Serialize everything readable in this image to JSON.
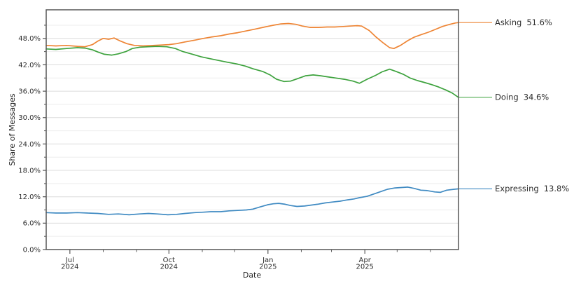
{
  "chart_data": {
    "type": "line",
    "title": "",
    "xlabel": "Date",
    "ylabel": "Share of Messages",
    "ylim": [
      0,
      54.5
    ],
    "grid": "horizontal",
    "legend_position": "right-end-annotations",
    "x_start_date": "2024-06-09",
    "x_end_date": "2025-06-27",
    "y_major_ticks": [
      {
        "v": 0,
        "label": "0.0%"
      },
      {
        "v": 6,
        "label": "6.0%"
      },
      {
        "v": 12,
        "label": "12.0%"
      },
      {
        "v": 18,
        "label": "18.0%"
      },
      {
        "v": 24,
        "label": "24.0%"
      },
      {
        "v": 30,
        "label": "30.0%"
      },
      {
        "v": 36,
        "label": "36.0%"
      },
      {
        "v": 42,
        "label": "42.0%"
      },
      {
        "v": 48,
        "label": "48.0%"
      }
    ],
    "y_minor_ticks": [
      3,
      9,
      15,
      21,
      27,
      33,
      39,
      45,
      51
    ],
    "x_major_ticks": [
      {
        "date": "2024-07-01",
        "line1": "Jul",
        "line2": "2024"
      },
      {
        "date": "2024-10-01",
        "line1": "Oct",
        "line2": "2024"
      },
      {
        "date": "2025-01-01",
        "line1": "Jan",
        "line2": "2025"
      },
      {
        "date": "2025-04-01",
        "line1": "Apr",
        "line2": "2025"
      }
    ],
    "x_minor_ticks": [
      "2024-08-01",
      "2024-09-01",
      "2024-11-01",
      "2024-12-01",
      "2025-02-01",
      "2025-03-01",
      "2025-05-01",
      "2025-06-01"
    ],
    "frame_color": "#565656",
    "grid_major_color": "#dcdcdc",
    "grid_minor_color": "#ededed",
    "series": [
      {
        "name": "Asking",
        "color": "#ee8535",
        "end_label_name": "Asking",
        "end_label_value": "51.6%",
        "points": [
          [
            "2024-06-09",
            46.4
          ],
          [
            "2024-06-18",
            46.3
          ],
          [
            "2024-06-28",
            46.4
          ],
          [
            "2024-07-08",
            46.2
          ],
          [
            "2024-07-15",
            46.1
          ],
          [
            "2024-07-22",
            46.6
          ],
          [
            "2024-07-27",
            47.4
          ],
          [
            "2024-08-01",
            48.0
          ],
          [
            "2024-08-06",
            47.8
          ],
          [
            "2024-08-11",
            48.1
          ],
          [
            "2024-08-17",
            47.4
          ],
          [
            "2024-08-23",
            46.8
          ],
          [
            "2024-08-30",
            46.4
          ],
          [
            "2024-09-07",
            46.3
          ],
          [
            "2024-09-16",
            46.4
          ],
          [
            "2024-09-24",
            46.5
          ],
          [
            "2024-10-01",
            46.6
          ],
          [
            "2024-10-08",
            46.8
          ],
          [
            "2024-10-16",
            47.2
          ],
          [
            "2024-10-25",
            47.6
          ],
          [
            "2024-11-02",
            48.0
          ],
          [
            "2024-11-09",
            48.3
          ],
          [
            "2024-11-18",
            48.6
          ],
          [
            "2024-11-26",
            49.0
          ],
          [
            "2024-12-04",
            49.3
          ],
          [
            "2024-12-12",
            49.7
          ],
          [
            "2024-12-20",
            50.1
          ],
          [
            "2024-12-29",
            50.6
          ],
          [
            "2025-01-06",
            51.0
          ],
          [
            "2025-01-13",
            51.3
          ],
          [
            "2025-01-20",
            51.4
          ],
          [
            "2025-01-27",
            51.2
          ],
          [
            "2025-02-02",
            50.8
          ],
          [
            "2025-02-09",
            50.5
          ],
          [
            "2025-02-17",
            50.5
          ],
          [
            "2025-02-25",
            50.6
          ],
          [
            "2025-03-04",
            50.6
          ],
          [
            "2025-03-12",
            50.7
          ],
          [
            "2025-03-18",
            50.8
          ],
          [
            "2025-03-25",
            50.9
          ],
          [
            "2025-03-29",
            50.8
          ],
          [
            "2025-04-05",
            49.8
          ],
          [
            "2025-04-11",
            48.4
          ],
          [
            "2025-04-18",
            47.0
          ],
          [
            "2025-04-24",
            45.9
          ],
          [
            "2025-04-28",
            45.7
          ],
          [
            "2025-05-04",
            46.4
          ],
          [
            "2025-05-11",
            47.5
          ],
          [
            "2025-05-17",
            48.3
          ],
          [
            "2025-05-24",
            48.9
          ],
          [
            "2025-05-30",
            49.4
          ],
          [
            "2025-06-06",
            50.1
          ],
          [
            "2025-06-12",
            50.7
          ],
          [
            "2025-06-19",
            51.2
          ],
          [
            "2025-06-24",
            51.5
          ],
          [
            "2025-06-27",
            51.6
          ]
        ]
      },
      {
        "name": "Doing",
        "color": "#3da23d",
        "end_label_name": "Doing",
        "end_label_value": "34.6%",
        "points": [
          [
            "2024-06-09",
            45.6
          ],
          [
            "2024-06-18",
            45.5
          ],
          [
            "2024-06-28",
            45.7
          ],
          [
            "2024-07-08",
            45.9
          ],
          [
            "2024-07-15",
            45.8
          ],
          [
            "2024-07-22",
            45.4
          ],
          [
            "2024-07-27",
            44.9
          ],
          [
            "2024-08-02",
            44.4
          ],
          [
            "2024-08-09",
            44.2
          ],
          [
            "2024-08-15",
            44.5
          ],
          [
            "2024-08-22",
            45.0
          ],
          [
            "2024-08-28",
            45.7
          ],
          [
            "2024-09-04",
            46.0
          ],
          [
            "2024-09-12",
            46.1
          ],
          [
            "2024-09-20",
            46.2
          ],
          [
            "2024-09-29",
            46.1
          ],
          [
            "2024-10-07",
            45.7
          ],
          [
            "2024-10-14",
            45.0
          ],
          [
            "2024-10-23",
            44.4
          ],
          [
            "2024-10-31",
            43.8
          ],
          [
            "2024-11-08",
            43.4
          ],
          [
            "2024-11-16",
            43.0
          ],
          [
            "2024-11-24",
            42.6
          ],
          [
            "2024-12-03",
            42.2
          ],
          [
            "2024-12-11",
            41.7
          ],
          [
            "2024-12-18",
            41.1
          ],
          [
            "2024-12-27",
            40.5
          ],
          [
            "2025-01-03",
            39.7
          ],
          [
            "2025-01-09",
            38.7
          ],
          [
            "2025-01-16",
            38.2
          ],
          [
            "2025-01-22",
            38.3
          ],
          [
            "2025-01-29",
            38.9
          ],
          [
            "2025-02-05",
            39.5
          ],
          [
            "2025-02-12",
            39.7
          ],
          [
            "2025-02-19",
            39.5
          ],
          [
            "2025-02-27",
            39.2
          ],
          [
            "2025-03-05",
            39.0
          ],
          [
            "2025-03-13",
            38.7
          ],
          [
            "2025-03-21",
            38.3
          ],
          [
            "2025-03-27",
            37.8
          ],
          [
            "2025-04-03",
            38.7
          ],
          [
            "2025-04-11",
            39.6
          ],
          [
            "2025-04-17",
            40.4
          ],
          [
            "2025-04-24",
            41.0
          ],
          [
            "2025-04-30",
            40.5
          ],
          [
            "2025-05-07",
            39.8
          ],
          [
            "2025-05-13",
            39.0
          ],
          [
            "2025-05-20",
            38.4
          ],
          [
            "2025-05-26",
            38.0
          ],
          [
            "2025-06-02",
            37.5
          ],
          [
            "2025-06-08",
            37.0
          ],
          [
            "2025-06-15",
            36.3
          ],
          [
            "2025-06-21",
            35.6
          ],
          [
            "2025-06-27",
            34.6
          ]
        ]
      },
      {
        "name": "Expressing",
        "color": "#3f8ac2",
        "end_label_name": "Expressing",
        "end_label_value": "13.8%",
        "points": [
          [
            "2024-06-09",
            8.4
          ],
          [
            "2024-06-18",
            8.3
          ],
          [
            "2024-06-28",
            8.3
          ],
          [
            "2024-07-08",
            8.4
          ],
          [
            "2024-07-17",
            8.3
          ],
          [
            "2024-07-27",
            8.2
          ],
          [
            "2024-08-06",
            8.0
          ],
          [
            "2024-08-15",
            8.1
          ],
          [
            "2024-08-25",
            7.9
          ],
          [
            "2024-09-04",
            8.1
          ],
          [
            "2024-09-12",
            8.2
          ],
          [
            "2024-09-20",
            8.1
          ],
          [
            "2024-09-30",
            7.9
          ],
          [
            "2024-10-08",
            8.0
          ],
          [
            "2024-10-16",
            8.2
          ],
          [
            "2024-10-25",
            8.4
          ],
          [
            "2024-11-02",
            8.5
          ],
          [
            "2024-11-09",
            8.6
          ],
          [
            "2024-11-18",
            8.6
          ],
          [
            "2024-11-26",
            8.8
          ],
          [
            "2024-12-04",
            8.9
          ],
          [
            "2024-12-12",
            9.0
          ],
          [
            "2024-12-18",
            9.2
          ],
          [
            "2024-12-25",
            9.7
          ],
          [
            "2025-01-01",
            10.2
          ],
          [
            "2025-01-06",
            10.4
          ],
          [
            "2025-01-11",
            10.5
          ],
          [
            "2025-01-17",
            10.3
          ],
          [
            "2025-01-22",
            10.0
          ],
          [
            "2025-01-28",
            9.8
          ],
          [
            "2025-02-04",
            9.9
          ],
          [
            "2025-02-10",
            10.1
          ],
          [
            "2025-02-16",
            10.3
          ],
          [
            "2025-02-23",
            10.6
          ],
          [
            "2025-03-02",
            10.8
          ],
          [
            "2025-03-09",
            11.0
          ],
          [
            "2025-03-16",
            11.3
          ],
          [
            "2025-03-22",
            11.5
          ],
          [
            "2025-03-27",
            11.8
          ],
          [
            "2025-04-03",
            12.1
          ],
          [
            "2025-04-09",
            12.6
          ],
          [
            "2025-04-16",
            13.2
          ],
          [
            "2025-04-22",
            13.7
          ],
          [
            "2025-04-29",
            14.0
          ],
          [
            "2025-05-05",
            14.1
          ],
          [
            "2025-05-11",
            14.2
          ],
          [
            "2025-05-17",
            13.9
          ],
          [
            "2025-05-23",
            13.5
          ],
          [
            "2025-05-29",
            13.4
          ],
          [
            "2025-06-05",
            13.1
          ],
          [
            "2025-06-10",
            13.0
          ],
          [
            "2025-06-16",
            13.5
          ],
          [
            "2025-06-23",
            13.7
          ],
          [
            "2025-06-27",
            13.8
          ]
        ]
      }
    ]
  }
}
